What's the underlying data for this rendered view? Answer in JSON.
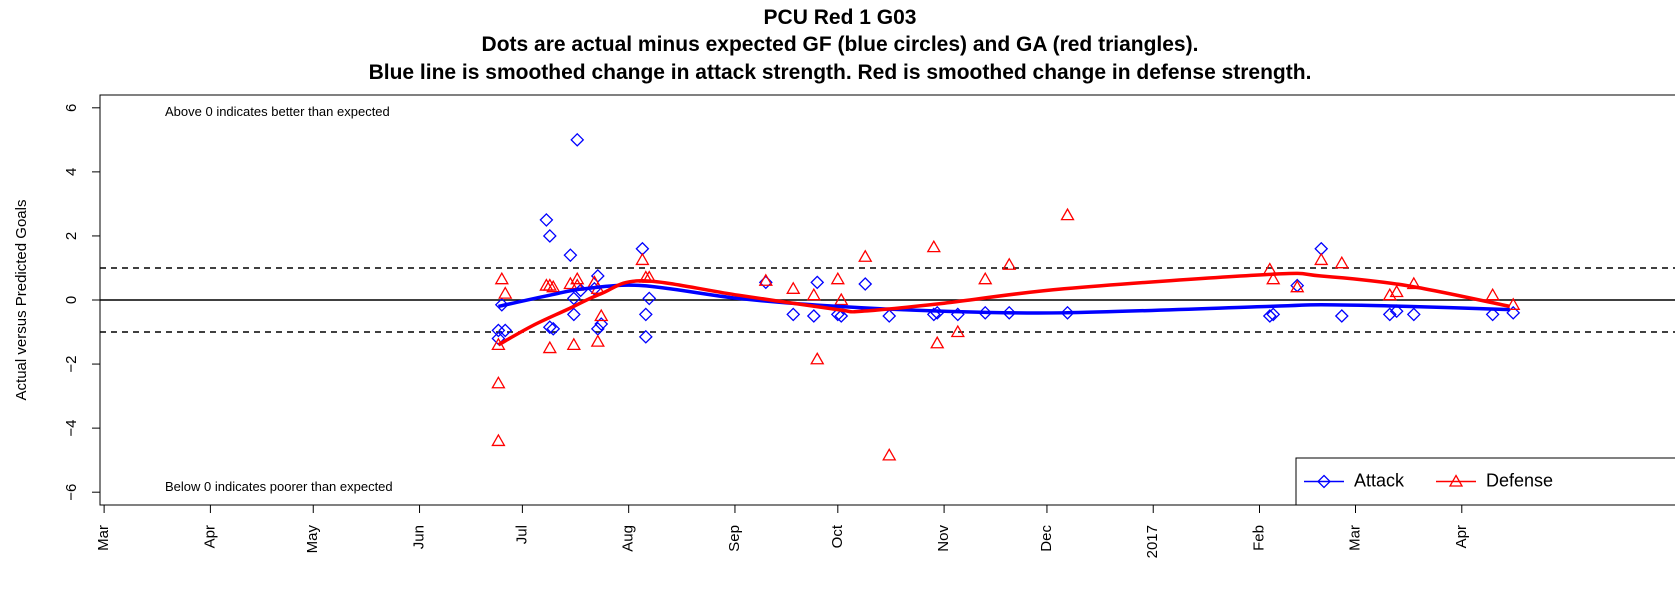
{
  "chart_data": {
    "type": "scatter",
    "title": "PCU Red 1 G03",
    "subtitle": [
      "Dots are actual minus expected GF (blue circles) and GA (red triangles).",
      "Blue line is smoothed change in attack strength. Red is smoothed change in defense strength."
    ],
    "y_label": "Actual versus Predicted Goals",
    "annotations": [
      {
        "text": "Above 0 indicates better than expected",
        "y": 5.85
      },
      {
        "text": "Below 0 indicates poorer than expected",
        "y": -5.85
      }
    ],
    "xlim": [
      -1.2,
      459.5
    ],
    "ylim": [
      -6.4,
      6.4
    ],
    "xticks": [
      {
        "value": 0,
        "label": "Mar"
      },
      {
        "value": 31,
        "label": "Apr"
      },
      {
        "value": 61,
        "label": "May"
      },
      {
        "value": 92,
        "label": "Jun"
      },
      {
        "value": 122,
        "label": "Jul"
      },
      {
        "value": 153,
        "label": "Aug"
      },
      {
        "value": 184,
        "label": "Sep"
      },
      {
        "value": 214,
        "label": "Oct"
      },
      {
        "value": 245,
        "label": "Nov"
      },
      {
        "value": 275,
        "label": "Dec"
      },
      {
        "value": 306,
        "label": "2017"
      },
      {
        "value": 337,
        "label": "Feb"
      },
      {
        "value": 365,
        "label": "Mar"
      },
      {
        "value": 396,
        "label": "Apr"
      }
    ],
    "yticks": [
      {
        "value": -6,
        "label": "−6"
      },
      {
        "value": -4,
        "label": "−4"
      },
      {
        "value": -2,
        "label": "−2"
      },
      0,
      2,
      4,
      6
    ],
    "reference_lines": [
      {
        "y": 0,
        "style": "solid"
      },
      {
        "y": 1,
        "style": "dashed"
      },
      {
        "y": -1,
        "style": "dashed"
      }
    ],
    "legend": "bottomright",
    "series": [
      {
        "name": "Attack",
        "color": "#0000ff",
        "marker": "diamond",
        "x": [
          115,
          116,
          115,
          117,
          129,
          130,
          130,
          131,
          136,
          137,
          137,
          138,
          139,
          144,
          143,
          144,
          145,
          157,
          158,
          158,
          159,
          193,
          201,
          207,
          208,
          214,
          215,
          222,
          229,
          242,
          243,
          249,
          257,
          264,
          281,
          340,
          341,
          348,
          355,
          361,
          375,
          377,
          382,
          405,
          411
        ],
        "values": [
          -0.95,
          -0.15,
          -1.2,
          -0.95,
          2.5,
          2.0,
          -0.85,
          -0.9,
          1.4,
          -0.45,
          0.05,
          5.0,
          0.3,
          0.75,
          0.35,
          -0.9,
          -0.75,
          1.6,
          -0.45,
          -1.15,
          0.05,
          0.55,
          -0.45,
          -0.5,
          0.55,
          -0.45,
          -0.5,
          0.5,
          -0.5,
          -0.45,
          -0.4,
          -0.45,
          -0.4,
          -0.4,
          -0.4,
          -0.5,
          -0.45,
          0.45,
          1.6,
          -0.5,
          -0.45,
          -0.35,
          -0.45,
          -0.45,
          -0.4
        ],
        "smooth_x": [
          115,
          130,
          140,
          157,
          185,
          214,
          245,
          280,
          340,
          355,
          380,
          410
        ],
        "smooth_values": [
          -0.2,
          0.15,
          0.35,
          0.45,
          0.05,
          -0.2,
          -0.35,
          -0.4,
          -0.2,
          -0.15,
          -0.2,
          -0.3
        ]
      },
      {
        "name": "Defense",
        "color": "#ff0000",
        "marker": "triangle",
        "x": [
          115,
          115,
          116,
          117,
          115,
          129,
          130,
          131,
          130,
          137,
          136,
          138,
          138,
          143,
          144,
          144,
          145,
          157,
          158,
          159,
          193,
          201,
          207,
          208,
          214,
          215,
          222,
          229,
          242,
          243,
          249,
          257,
          264,
          281,
          340,
          341,
          348,
          355,
          361,
          375,
          377,
          382,
          405,
          411
        ],
        "values": [
          -2.6,
          -4.4,
          0.65,
          0.2,
          -1.4,
          0.45,
          0.45,
          0.4,
          -1.5,
          -1.4,
          0.5,
          0.65,
          0.45,
          0.55,
          0.35,
          -1.3,
          -0.5,
          1.25,
          0.7,
          0.7,
          0.6,
          0.35,
          0.15,
          -1.85,
          0.65,
          0.0,
          1.35,
          -4.85,
          1.65,
          -1.35,
          -1.0,
          0.65,
          1.1,
          2.65,
          0.95,
          0.65,
          0.4,
          1.25,
          1.15,
          0.15,
          0.25,
          0.5,
          0.15,
          -0.15
        ],
        "smooth_x": [
          115,
          125,
          135,
          145,
          157,
          185,
          214,
          221,
          245,
          280,
          340,
          355,
          380,
          410
        ],
        "smooth_values": [
          -1.4,
          -0.8,
          -0.3,
          0.2,
          0.6,
          0.15,
          -0.3,
          -0.35,
          -0.1,
          0.35,
          0.8,
          0.75,
          0.45,
          -0.2
        ]
      }
    ]
  }
}
